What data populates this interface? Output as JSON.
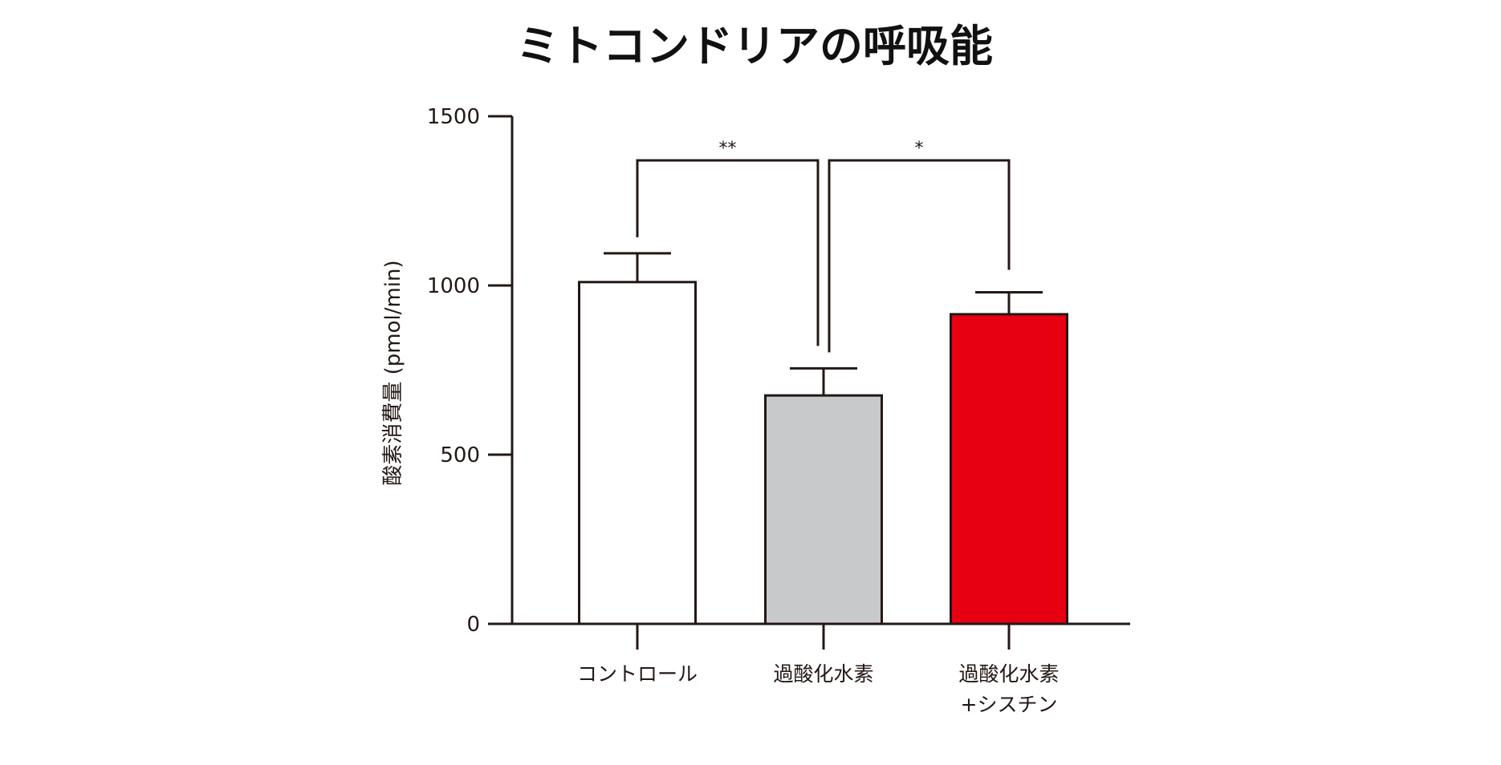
{
  "chart_data": {
    "type": "bar",
    "title": "ミトコンドリアの呼吸能",
    "ylabel": "酸素消費量 (pmol/min)",
    "xlabel": "",
    "ylim": [
      0,
      1500
    ],
    "yticks": [
      0,
      500,
      1000,
      1500
    ],
    "grid": false,
    "categories": [
      [
        "コントロール"
      ],
      [
        "過酸化水素"
      ],
      [
        "過酸化水素",
        "+シスチン"
      ]
    ],
    "values": [
      1010,
      675,
      915
    ],
    "errors": [
      85,
      80,
      65
    ],
    "colors": [
      "#ffffff",
      "#c8c9ca",
      "#e60012"
    ],
    "edge_color": "#231815",
    "significance": [
      {
        "from": 0,
        "to": 1,
        "label": "**"
      },
      {
        "from": 1,
        "to": 2,
        "label": "*"
      }
    ]
  }
}
